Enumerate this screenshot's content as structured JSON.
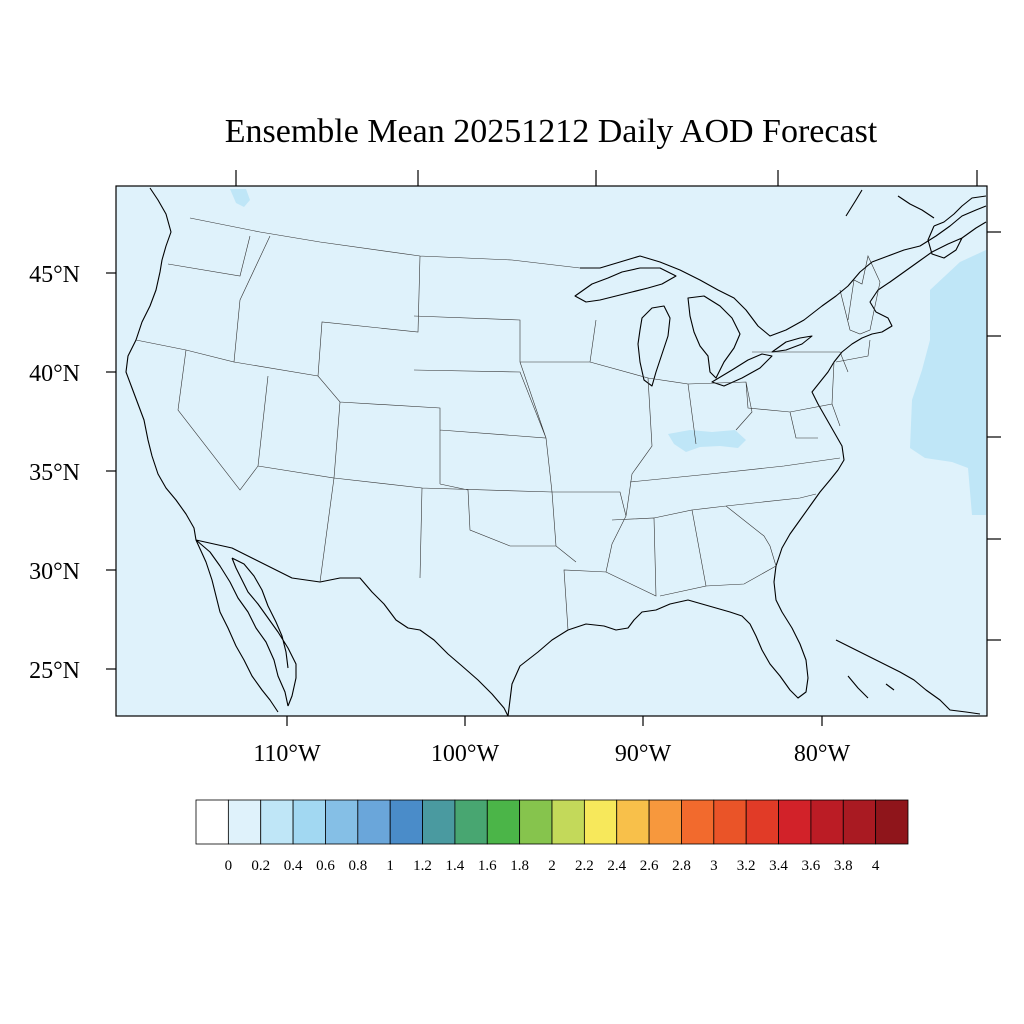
{
  "title": "Ensemble Mean 20251212 Daily AOD Forecast",
  "map": {
    "lon_range": [
      -119,
      -70
    ],
    "lat_range": [
      22.7,
      49.5
    ],
    "background_color": "#dff2fb",
    "lat_labels": [
      {
        "lat": 45,
        "text": "45°N"
      },
      {
        "lat": 40,
        "text": "40°N"
      },
      {
        "lat": 35,
        "text": "35°N"
      },
      {
        "lat": 30,
        "text": "30°N"
      },
      {
        "lat": 25,
        "text": "25°N"
      }
    ],
    "lon_labels": [
      {
        "lon": -110,
        "text": "110°W"
      },
      {
        "lon": -100,
        "text": "100°W"
      },
      {
        "lon": -90,
        "text": "90°W"
      },
      {
        "lon": -80,
        "text": "80°W"
      }
    ]
  },
  "colorbar": {
    "labels": [
      "0",
      "0.2",
      "0.4",
      "0.6",
      "0.8",
      "1",
      "1.2",
      "1.4",
      "1.6",
      "1.8",
      "2",
      "2.2",
      "2.4",
      "2.6",
      "2.8",
      "3",
      "3.2",
      "3.4",
      "3.6",
      "3.8",
      "4"
    ],
    "colors": [
      "#ffffff",
      "#dff2fb",
      "#bfe6f7",
      "#a2d8f2",
      "#85bfe6",
      "#6aa6da",
      "#4a8cc9",
      "#4a9aa0",
      "#48a671",
      "#4bb548",
      "#86c44d",
      "#c3d95a",
      "#f7e85b",
      "#f8c04a",
      "#f7983d",
      "#f26a2d",
      "#ea5428",
      "#e13b27",
      "#d22229",
      "#bb1c25",
      "#a91a22",
      "#8f151b"
    ]
  }
}
